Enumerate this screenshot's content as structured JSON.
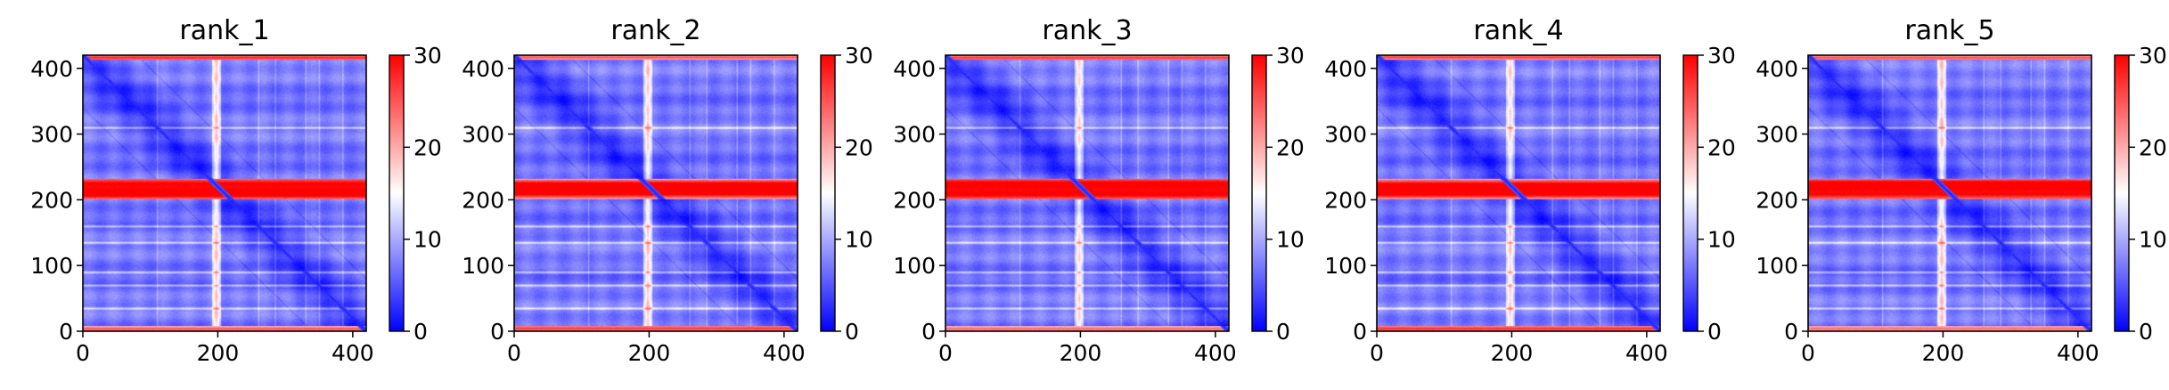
{
  "figure": {
    "panel_count": 5
  },
  "chart_data": [
    {
      "type": "heatmap",
      "title": "rank_1",
      "xlim": [
        0,
        420
      ],
      "ylim": [
        420,
        0
      ],
      "xticks": [
        0,
        200,
        400
      ],
      "yticks": [
        0,
        100,
        200,
        300,
        400
      ],
      "colorbar": {
        "cmap": "bwr",
        "range": [
          0,
          30
        ],
        "ticks": [
          0,
          10,
          20,
          30
        ]
      },
      "grid": false,
      "legend": "none",
      "features": {
        "high_band_rows": [
          [
            188,
            218
          ],
          [
            0,
            6
          ],
          [
            412,
            420
          ]
        ],
        "diagonal": "low",
        "light_columns": [
          [
            190,
            205
          ]
        ],
        "light_rows": [
          110,
          260,
          285,
          330,
          350,
          385
        ]
      }
    },
    {
      "type": "heatmap",
      "title": "rank_2",
      "xlim": [
        0,
        420
      ],
      "ylim": [
        420,
        0
      ],
      "xticks": [
        0,
        200,
        400
      ],
      "yticks": [
        0,
        100,
        200,
        300,
        400
      ],
      "colorbar": {
        "cmap": "bwr",
        "range": [
          0,
          30
        ],
        "ticks": [
          0,
          10,
          20,
          30
        ]
      },
      "grid": false,
      "legend": "none",
      "features": {
        "high_band_rows": [
          [
            188,
            218
          ],
          [
            0,
            6
          ],
          [
            412,
            420
          ]
        ],
        "diagonal": "low",
        "light_columns": [
          [
            190,
            205
          ]
        ],
        "light_rows": [
          110,
          260,
          285,
          330,
          350,
          385
        ]
      }
    },
    {
      "type": "heatmap",
      "title": "rank_3",
      "xlim": [
        0,
        420
      ],
      "ylim": [
        420,
        0
      ],
      "xticks": [
        0,
        200,
        400
      ],
      "yticks": [
        0,
        100,
        200,
        300,
        400
      ],
      "colorbar": {
        "cmap": "bwr",
        "range": [
          0,
          30
        ],
        "ticks": [
          0,
          10,
          20,
          30
        ]
      },
      "grid": false,
      "legend": "none",
      "features": {
        "high_band_rows": [
          [
            188,
            218
          ],
          [
            0,
            6
          ],
          [
            412,
            420
          ]
        ],
        "diagonal": "low",
        "light_columns": [
          [
            190,
            205
          ]
        ],
        "light_rows": [
          110,
          260,
          285,
          330,
          350,
          385
        ]
      }
    },
    {
      "type": "heatmap",
      "title": "rank_4",
      "xlim": [
        0,
        420
      ],
      "ylim": [
        420,
        0
      ],
      "xticks": [
        0,
        200,
        400
      ],
      "yticks": [
        0,
        100,
        200,
        300,
        400
      ],
      "colorbar": {
        "cmap": "bwr",
        "range": [
          0,
          30
        ],
        "ticks": [
          0,
          10,
          20,
          30
        ]
      },
      "grid": false,
      "legend": "none",
      "features": {
        "high_band_rows": [
          [
            188,
            218
          ],
          [
            0,
            6
          ],
          [
            412,
            420
          ]
        ],
        "diagonal": "low",
        "light_columns": [
          [
            190,
            205
          ]
        ],
        "light_rows": [
          110,
          260,
          285,
          330,
          350,
          385
        ]
      }
    },
    {
      "type": "heatmap",
      "title": "rank_5",
      "xlim": [
        0,
        420
      ],
      "ylim": [
        420,
        0
      ],
      "xticks": [
        0,
        200,
        400
      ],
      "yticks": [
        0,
        100,
        200,
        300,
        400
      ],
      "colorbar": {
        "cmap": "bwr",
        "range": [
          0,
          30
        ],
        "ticks": [
          0,
          10,
          20,
          30
        ]
      },
      "grid": false,
      "legend": "none",
      "features": {
        "high_band_rows": [
          [
            188,
            218
          ],
          [
            0,
            6
          ],
          [
            412,
            420
          ]
        ],
        "diagonal": "low",
        "light_columns": [
          [
            190,
            205
          ]
        ],
        "light_rows": [
          110,
          260,
          285,
          330,
          350,
          385
        ]
      }
    }
  ]
}
